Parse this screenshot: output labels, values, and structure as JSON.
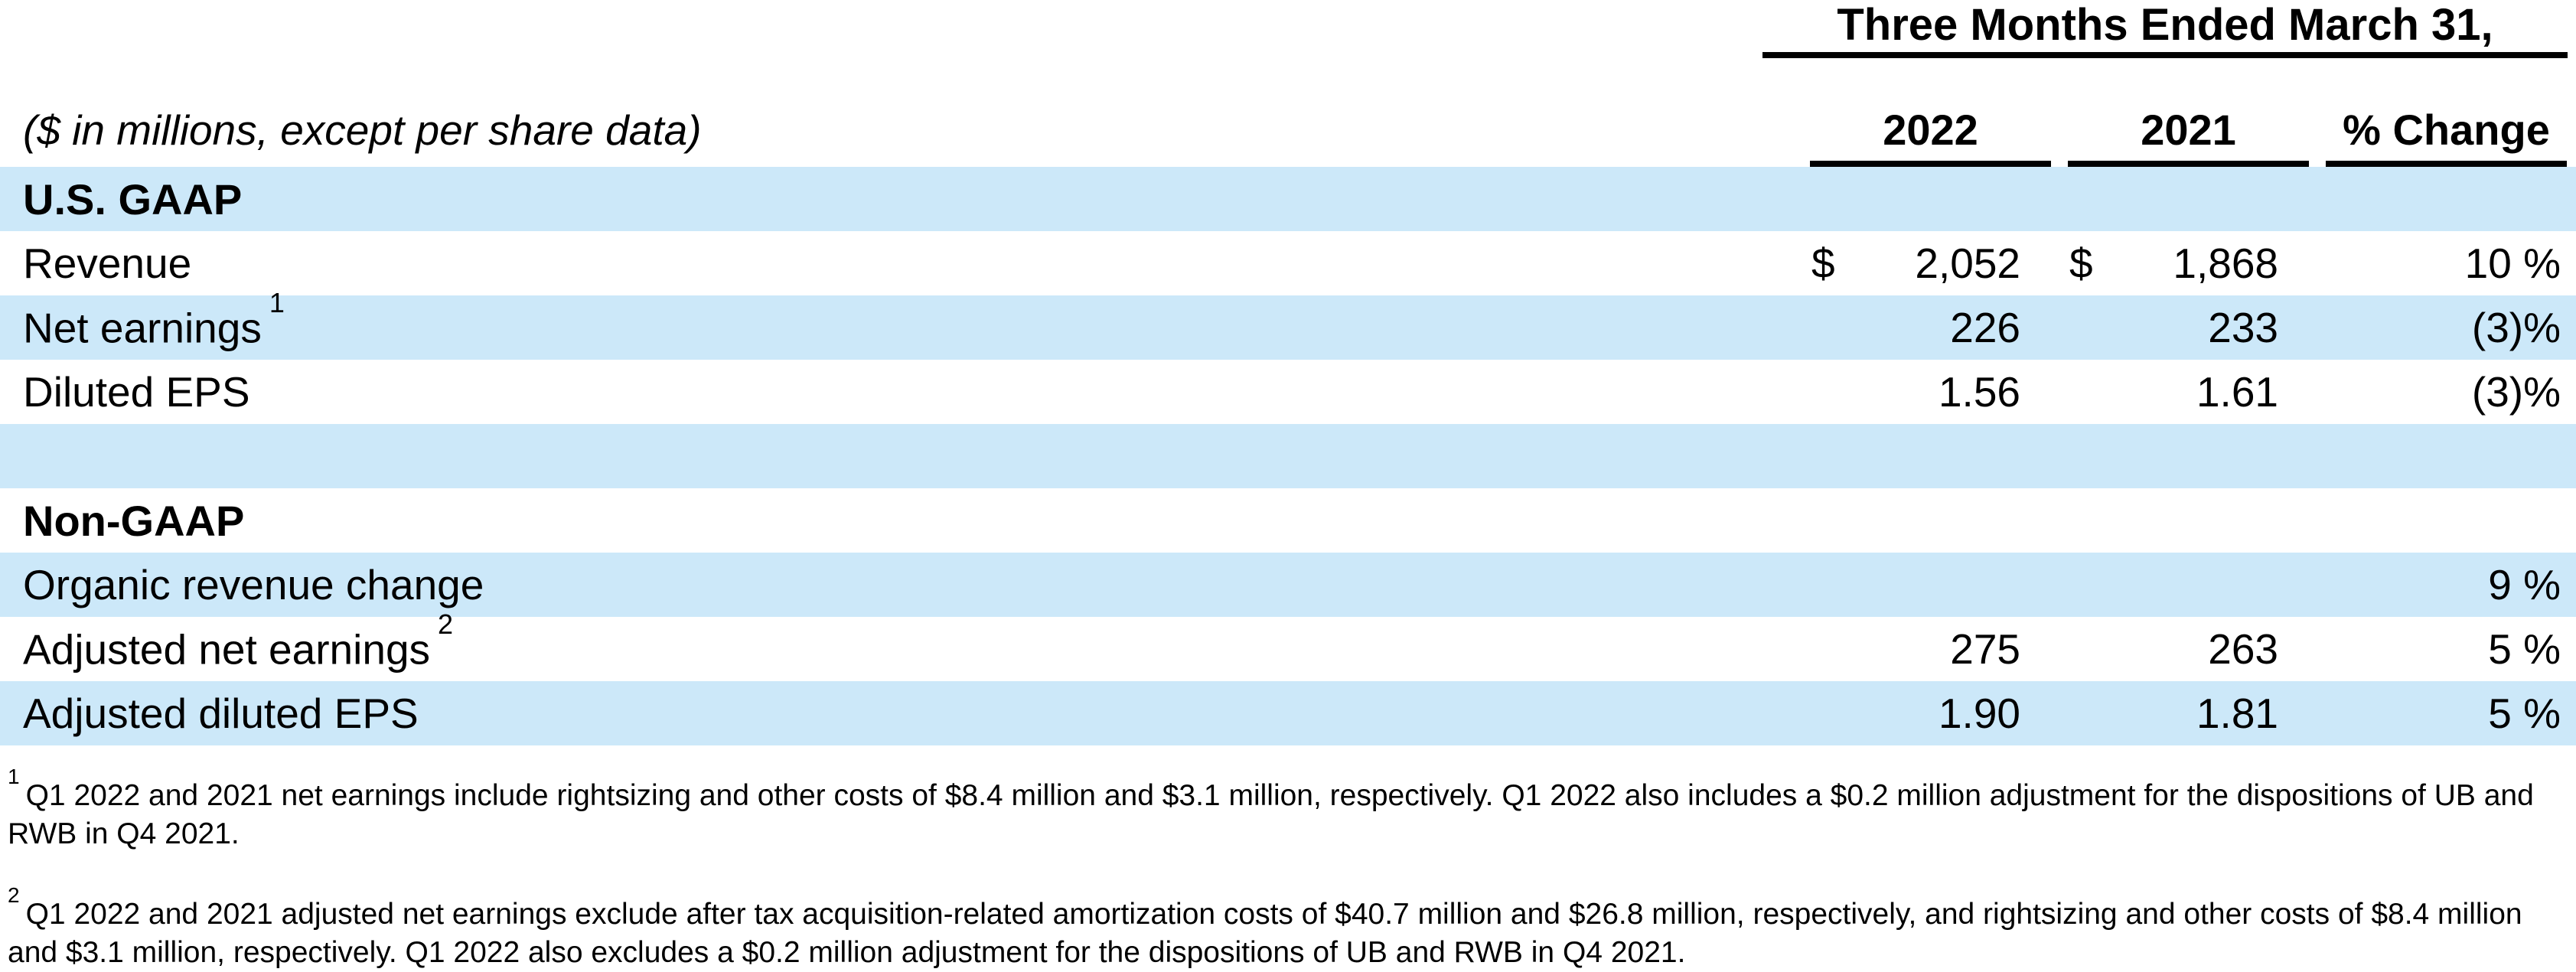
{
  "header": {
    "period": "Three Months Ended March 31,",
    "subtitle": "($ in millions, except per share data)",
    "col_2022": "2022",
    "col_2021": "2021",
    "col_change": "% Change"
  },
  "rows": [
    {
      "label": "U.S. GAAP",
      "sup": "",
      "bold": true,
      "shaded": true,
      "d1": "",
      "v1": "",
      "d2": "",
      "v2": "",
      "pct": ""
    },
    {
      "label": "Revenue",
      "sup": "",
      "bold": false,
      "shaded": false,
      "d1": "$",
      "v1": "2,052",
      "d2": "$",
      "v2": "1,868",
      "pct": "10 %"
    },
    {
      "label": "Net earnings",
      "sup": "1",
      "bold": false,
      "shaded": true,
      "d1": "",
      "v1": "226",
      "d2": "",
      "v2": "233",
      "pct": "(3)%"
    },
    {
      "label": "Diluted EPS",
      "sup": "",
      "bold": false,
      "shaded": false,
      "d1": "",
      "v1": "1.56",
      "d2": "",
      "v2": "1.61",
      "pct": "(3)%"
    },
    {
      "label": "",
      "sup": "",
      "bold": false,
      "shaded": true,
      "d1": "",
      "v1": "",
      "d2": "",
      "v2": "",
      "pct": ""
    },
    {
      "label": "Non-GAAP",
      "sup": "",
      "bold": true,
      "shaded": false,
      "d1": "",
      "v1": "",
      "d2": "",
      "v2": "",
      "pct": ""
    },
    {
      "label": "Organic revenue change",
      "sup": "",
      "bold": false,
      "shaded": true,
      "d1": "",
      "v1": "",
      "d2": "",
      "v2": "",
      "pct": "9 %"
    },
    {
      "label": "Adjusted net earnings",
      "sup": "2",
      "bold": false,
      "shaded": false,
      "d1": "",
      "v1": "275",
      "d2": "",
      "v2": "263",
      "pct": "5 %"
    },
    {
      "label": "Adjusted diluted EPS",
      "sup": "",
      "bold": false,
      "shaded": true,
      "d1": "",
      "v1": "1.90",
      "d2": "",
      "v2": "1.81",
      "pct": "5 %"
    }
  ],
  "footnotes": [
    {
      "sup": "1",
      "text": "Q1 2022 and 2021 net earnings include rightsizing and other costs of $8.4 million and $3.1 million, respectively. Q1 2022 also includes a $0.2 million adjustment for the dispositions of UB and RWB in Q4 2021."
    },
    {
      "sup": "2",
      "text": "Q1 2022 and 2021 adjusted net earnings exclude after tax acquisition-related amortization costs of $40.7 million and $26.8 million, respectively, and rightsizing and other costs of $8.4 million and $3.1 million, respectively. Q1 2022 also excludes a $0.2 million adjustment for the dispositions of UB and RWB in Q4 2021."
    }
  ],
  "colors": {
    "row_shade": "#cce8f9",
    "rule": "#000000",
    "text": "#000000"
  }
}
